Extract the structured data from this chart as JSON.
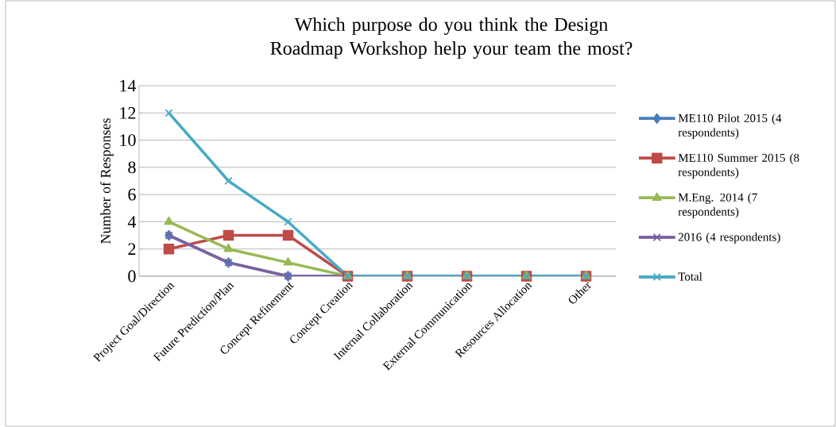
{
  "chart_data": {
    "type": "line",
    "title": "Which purpose do you think the Design Roadmap Workshop help your team the most?",
    "ylabel": "Number of Responses",
    "categories": [
      "Project Goal/Direction",
      "Future Prediction/Plan",
      "Concept Refinement",
      "Concept Creation",
      "Internal Collaboration",
      "External Communication",
      "Resources Allocation",
      "Other"
    ],
    "series": [
      {
        "name": "ME110 Pilot 2015 (4 respondents)",
        "color": "#4a7ebb",
        "marker": "diamond",
        "values": [
          3,
          1,
          0,
          0,
          0,
          0,
          0,
          0
        ]
      },
      {
        "name": "ME110 Summer 2015 (8 respondents)",
        "color": "#be4b48",
        "marker": "square",
        "values": [
          2,
          3,
          3,
          0,
          0,
          0,
          0,
          0
        ]
      },
      {
        "name": "M.Eng. 2014 (7 respondents)",
        "color": "#98b954",
        "marker": "triangle",
        "values": [
          4,
          2,
          1,
          0,
          0,
          0,
          0,
          0
        ]
      },
      {
        "name": "2016 (4 respondents)",
        "color": "#7d60a0",
        "marker": "cross",
        "values": [
          3,
          1,
          0,
          0,
          0,
          0,
          0,
          0
        ]
      },
      {
        "name": "Total",
        "color": "#46aac5",
        "marker": "cross",
        "values": [
          12,
          7,
          4,
          0,
          0,
          0,
          0,
          0
        ]
      }
    ],
    "ylim": [
      0,
      14
    ],
    "yticks": [
      0,
      2,
      4,
      6,
      8,
      10,
      12,
      14
    ],
    "grid": "y",
    "legend": "right",
    "line_style": "solid"
  }
}
